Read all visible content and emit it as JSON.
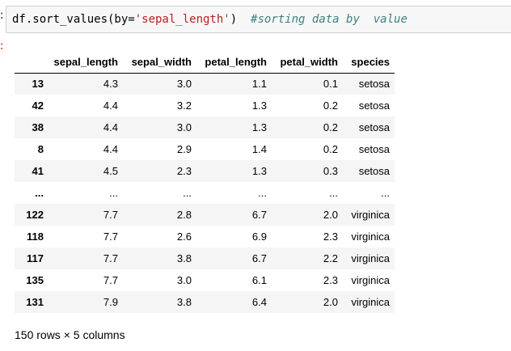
{
  "cell": {
    "in_prompt": ":",
    "out_prompt": ":",
    "code_prefix": "df.sort_values(by=",
    "code_string": "'sepal_length'",
    "code_suffix": ")  ",
    "code_comment": "#sorting data by  value"
  },
  "table": {
    "columns": [
      "sepal_length",
      "sepal_width",
      "petal_length",
      "petal_width",
      "species"
    ],
    "rows": [
      {
        "index": "13",
        "cells": [
          "4.3",
          "3.0",
          "1.1",
          "0.1",
          "setosa"
        ]
      },
      {
        "index": "42",
        "cells": [
          "4.4",
          "3.2",
          "1.3",
          "0.2",
          "setosa"
        ]
      },
      {
        "index": "38",
        "cells": [
          "4.4",
          "3.0",
          "1.3",
          "0.2",
          "setosa"
        ]
      },
      {
        "index": "8",
        "cells": [
          "4.4",
          "2.9",
          "1.4",
          "0.2",
          "setosa"
        ]
      },
      {
        "index": "41",
        "cells": [
          "4.5",
          "2.3",
          "1.3",
          "0.3",
          "setosa"
        ]
      },
      {
        "index": "...",
        "cells": [
          "...",
          "...",
          "...",
          "...",
          "..."
        ]
      },
      {
        "index": "122",
        "cells": [
          "7.7",
          "2.8",
          "6.7",
          "2.0",
          "virginica"
        ]
      },
      {
        "index": "118",
        "cells": [
          "7.7",
          "2.6",
          "6.9",
          "2.3",
          "virginica"
        ]
      },
      {
        "index": "117",
        "cells": [
          "7.7",
          "3.8",
          "6.7",
          "2.2",
          "virginica"
        ]
      },
      {
        "index": "135",
        "cells": [
          "7.7",
          "3.0",
          "6.1",
          "2.3",
          "virginica"
        ]
      },
      {
        "index": "131",
        "cells": [
          "7.9",
          "3.8",
          "6.4",
          "2.0",
          "virginica"
        ]
      }
    ]
  },
  "shape_text": "150 rows × 5 columns",
  "colors": {
    "cell_background": "#f7f7f7",
    "cell_border": "#cfcfcf",
    "string_color": "#ba2121",
    "comment_color": "#408080",
    "striped_row": "#f5f5f5"
  }
}
